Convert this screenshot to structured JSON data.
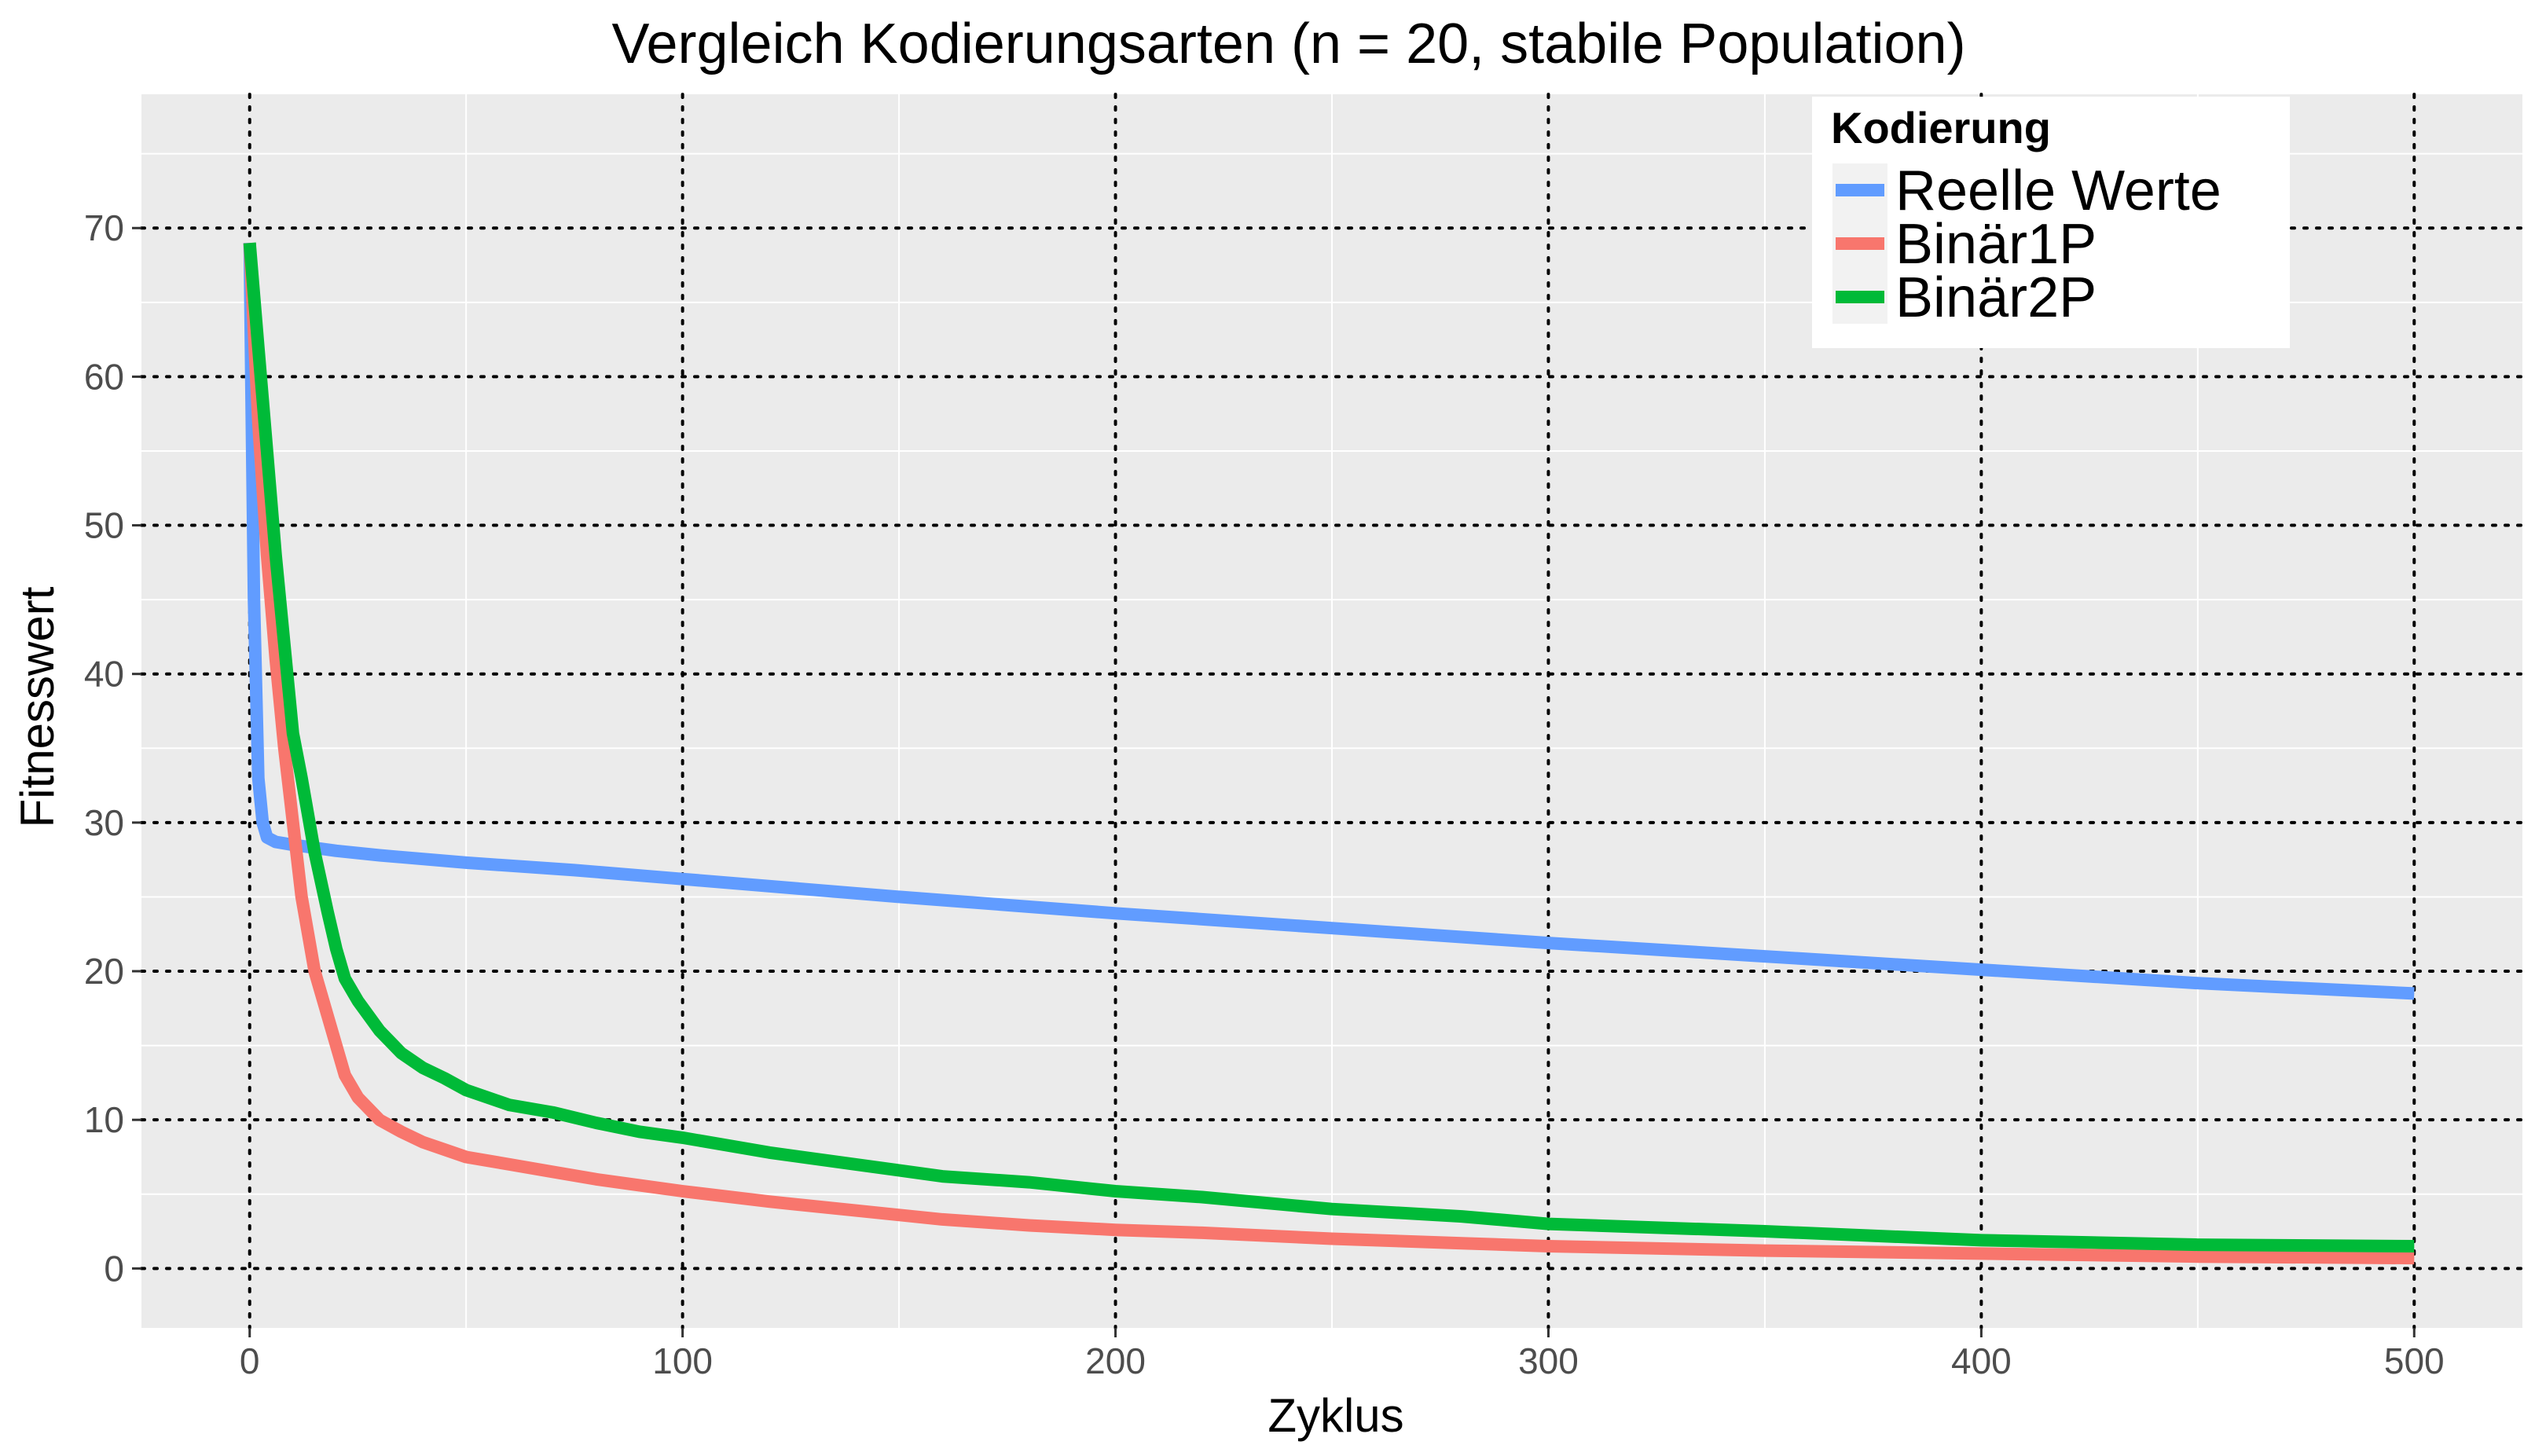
{
  "chart_data": {
    "type": "line",
    "title": "Vergleich Kodierungsarten (n = 20, stabile Population)",
    "xlabel": "Zyklus",
    "ylabel": "Fitnesswert",
    "xlim": [
      -25,
      525
    ],
    "ylim": [
      -4,
      79
    ],
    "x_ticks": [
      0,
      100,
      200,
      300,
      400,
      500
    ],
    "y_ticks": [
      0,
      10,
      20,
      30,
      40,
      50,
      60,
      70
    ],
    "grid": true,
    "legend": {
      "title": "Kodierung",
      "position": "top-right"
    },
    "series": [
      {
        "name": "Reelle Werte",
        "color": "#619CFF",
        "x": [
          0,
          1,
          2,
          3,
          4,
          6,
          8,
          10,
          15,
          20,
          30,
          50,
          75,
          100,
          150,
          200,
          250,
          300,
          350,
          400,
          450,
          500
        ],
        "y": [
          69,
          45,
          33,
          30,
          29,
          28.7,
          28.6,
          28.5,
          28.3,
          28.1,
          27.8,
          27.3,
          26.8,
          26.2,
          25.0,
          23.9,
          22.9,
          21.9,
          21.0,
          20.1,
          19.2,
          18.5
        ]
      },
      {
        "name": "Binär1P",
        "color": "#F8766D",
        "x": [
          0,
          2,
          4,
          6,
          8,
          10,
          12,
          15,
          18,
          20,
          22,
          25,
          30,
          35,
          40,
          45,
          50,
          60,
          70,
          80,
          90,
          100,
          120,
          140,
          160,
          180,
          200,
          220,
          250,
          280,
          300,
          350,
          400,
          450,
          500
        ],
        "y": [
          69,
          57,
          48,
          41,
          35,
          30,
          25,
          20,
          17,
          15,
          13,
          11.5,
          10,
          9.2,
          8.5,
          8.0,
          7.5,
          7.0,
          6.5,
          6.0,
          5.6,
          5.2,
          4.5,
          3.9,
          3.3,
          2.9,
          2.6,
          2.4,
          2.0,
          1.7,
          1.5,
          1.2,
          1.0,
          0.8,
          0.7
        ]
      },
      {
        "name": "Binär2P",
        "color": "#00BA38",
        "x": [
          0,
          2,
          4,
          6,
          8,
          10,
          12,
          15,
          18,
          20,
          22,
          25,
          30,
          35,
          40,
          45,
          50,
          60,
          70,
          80,
          90,
          100,
          120,
          140,
          160,
          180,
          200,
          220,
          250,
          280,
          300,
          350,
          400,
          450,
          500
        ],
        "y": [
          69,
          62,
          55,
          48,
          42,
          36,
          33,
          28,
          24,
          21.5,
          19.5,
          18,
          16,
          14.5,
          13.5,
          12.8,
          12,
          11,
          10.5,
          9.8,
          9.2,
          8.8,
          7.8,
          7.0,
          6.2,
          5.8,
          5.2,
          4.8,
          4.0,
          3.5,
          3.0,
          2.5,
          1.9,
          1.6,
          1.5
        ]
      }
    ]
  }
}
